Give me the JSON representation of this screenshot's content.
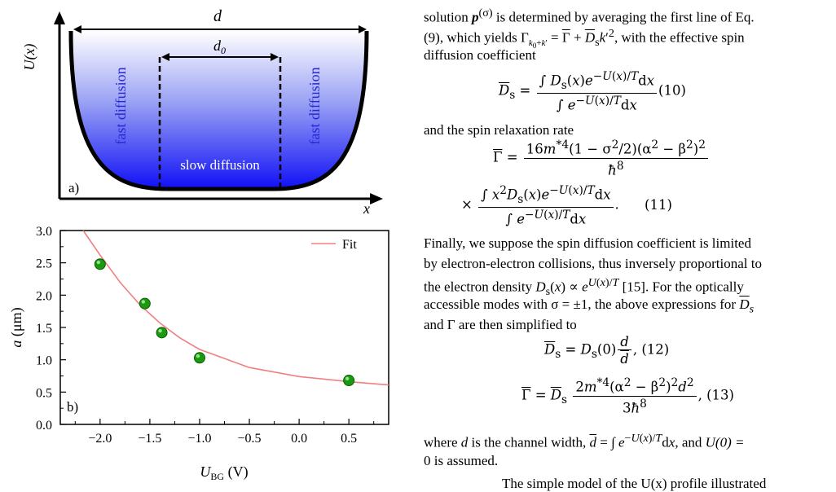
{
  "figure": {
    "panel_a": {
      "y_label": "U(x)",
      "x_label": "x",
      "d_label": "d",
      "d0_label": "d",
      "d0_sub": "0",
      "left_text": "fast diffusion",
      "right_text": "fast diffusion",
      "center_text": "slow diffusion",
      "tag": "a)"
    },
    "panel_b": {
      "tag": "b)",
      "legend": "Fit",
      "ylabel_var": "a",
      "ylabel_unit": "(μm)",
      "xlabel_var": "U",
      "xlabel_sub": "BG",
      "xlabel_unit": "(V)",
      "chart_data": {
        "type": "scatter",
        "x_ticks": [
          "−2.0",
          "−1.5",
          "−1.0",
          "−0.5",
          "0.0",
          "0.5"
        ],
        "x_tick_values": [
          -2.0,
          -1.5,
          -1.0,
          -0.5,
          0.0,
          0.5
        ],
        "y_ticks": [
          "0.0",
          "0.5",
          "1.0",
          "1.5",
          "2.0",
          "2.5",
          "3.0"
        ],
        "y_tick_values": [
          0.0,
          0.5,
          1.0,
          1.5,
          2.0,
          2.5,
          3.0
        ],
        "xlim": [
          -2.4,
          0.9
        ],
        "ylim": [
          0.0,
          3.0
        ],
        "series": [
          {
            "name": "",
            "kind": "points",
            "color": "#1a9a10",
            "x": [
              -2.0,
              -1.55,
              -1.38,
              -1.0,
              0.5
            ],
            "y": [
              2.48,
              1.87,
              1.42,
              1.03,
              0.68
            ]
          },
          {
            "name": "Fit",
            "kind": "line",
            "color": "#f08080",
            "x": [
              -2.17,
              -2.0,
              -1.8,
              -1.6,
              -1.4,
              -1.2,
              -1.0,
              -0.5,
              0.0,
              0.5,
              0.9
            ],
            "y": [
              3.0,
              2.62,
              2.2,
              1.85,
              1.57,
              1.34,
              1.16,
              0.88,
              0.74,
              0.66,
              0.61
            ]
          }
        ]
      }
    }
  },
  "text": {
    "line1a": "solution ",
    "line1b": " is determined by averaging the first line of Eq.",
    "line2a": "(9), which yields ",
    "line2b": ", with the effective spin",
    "line3": "diffusion coefficient",
    "line4": "and the spin relaxation rate",
    "para2": [
      "Finally, we suppose the spin diffusion coefficient is limited",
      "by electron-electron collisions, thus inversely proportional to",
      "the electron density ",
      "accessible modes with σ = ±1, the above expressions for ",
      "and Γ are then simplified to"
    ],
    "line5a": "where ",
    "line5b": " is the channel width, ",
    "line5c": ", and ",
    "line5d": "U(0) =",
    "line6": "0 is assumed.",
    "line7": "The simple model of the U(x) profile illustrated",
    "eq10": "(10)",
    "eq11": "(11)",
    "eq12": "(12)",
    "eq13": "(13)"
  }
}
